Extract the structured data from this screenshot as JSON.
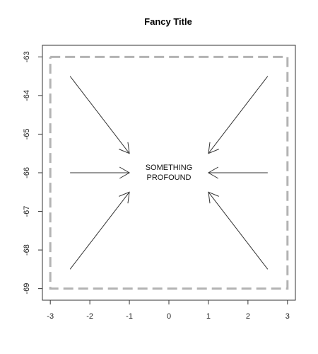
{
  "chart_data": {
    "type": "line",
    "title": "Fancy Title",
    "xlabel": "",
    "ylabel": "",
    "xlim": [
      -3.2,
      3.2
    ],
    "ylim": [
      -69.3,
      -62.7
    ],
    "x_ticks": [
      -3,
      -2,
      -1,
      0,
      1,
      2,
      3
    ],
    "y_ticks": [
      -63,
      -64,
      -65,
      -66,
      -67,
      -68,
      -69
    ],
    "grid": false,
    "legend": "none",
    "frame": {
      "x": [
        -3,
        3,
        3,
        -3,
        -3
      ],
      "y": [
        -63,
        -63,
        -69,
        -69,
        -63
      ],
      "line_style": "dashed",
      "color": "#b3b3b3"
    },
    "arrows": [
      {
        "from": [
          -2.5,
          -63.5
        ],
        "to": [
          -1.0,
          -65.5
        ]
      },
      {
        "from": [
          2.5,
          -63.5
        ],
        "to": [
          1.0,
          -65.5
        ]
      },
      {
        "from": [
          -2.5,
          -66.0
        ],
        "to": [
          -1.0,
          -66.0
        ]
      },
      {
        "from": [
          2.5,
          -66.0
        ],
        "to": [
          1.0,
          -66.0
        ]
      },
      {
        "from": [
          -2.5,
          -68.5
        ],
        "to": [
          -1.0,
          -66.5
        ]
      },
      {
        "from": [
          2.5,
          -68.5
        ],
        "to": [
          1.0,
          -66.5
        ]
      }
    ],
    "annotation": {
      "lines": [
        "SOMETHING",
        "PROFOUND"
      ],
      "x": 0,
      "y": -66
    },
    "colors": {
      "arrow": "#333333",
      "frame": "#b3b3b3",
      "axis": "#333333"
    }
  }
}
